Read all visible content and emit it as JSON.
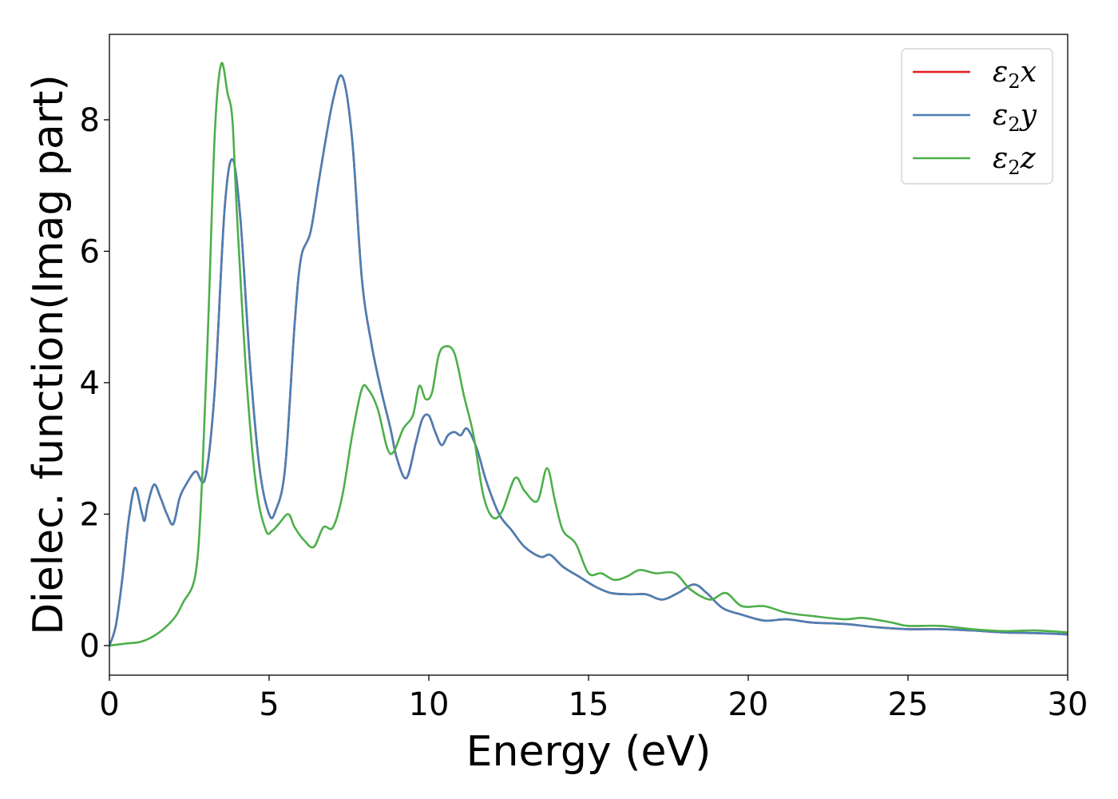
{
  "chart_data": {
    "type": "line",
    "xlabel": "Energy (eV)",
    "ylabel": "Dielec. function(Imag part)",
    "xlim": [
      0,
      30
    ],
    "ylim": [
      -0.45,
      9.3
    ],
    "xticks": [
      0,
      5,
      10,
      15,
      20,
      25,
      30
    ],
    "yticks": [
      0,
      2,
      4,
      6,
      8
    ],
    "grid": false,
    "legend_position": "top-right",
    "series": [
      {
        "name": "ε2x",
        "label_base": "ε",
        "label_sub": "2",
        "label_tail": "x",
        "color": "#e41a1c",
        "x": [
          0,
          0.2,
          0.4,
          0.6,
          0.8,
          1.0,
          1.1,
          1.2,
          1.4,
          1.6,
          1.8,
          2.0,
          2.2,
          2.4,
          2.7,
          3.0,
          3.3,
          3.6,
          3.85,
          4.1,
          4.4,
          4.7,
          5.0,
          5.2,
          5.5,
          5.8,
          6.0,
          6.3,
          6.6,
          7.0,
          7.3,
          7.6,
          7.9,
          8.2,
          8.5,
          8.8,
          9.0,
          9.3,
          9.6,
          9.8,
          10.0,
          10.2,
          10.4,
          10.6,
          10.8,
          11.0,
          11.2,
          11.5,
          11.8,
          12.2,
          12.6,
          13.0,
          13.5,
          13.8,
          14.2,
          14.7,
          15.2,
          15.7,
          16.3,
          16.8,
          17.3,
          17.8,
          18.3,
          18.7,
          19.2,
          19.8,
          20.5,
          21.2,
          22,
          23,
          24,
          25,
          26,
          27,
          28,
          29,
          30
        ],
        "values": [
          0.0,
          0.3,
          1.0,
          1.9,
          2.4,
          2.05,
          1.9,
          2.15,
          2.45,
          2.25,
          2.0,
          1.85,
          2.25,
          2.45,
          2.65,
          2.55,
          3.9,
          6.6,
          7.4,
          6.5,
          4.3,
          2.7,
          2.0,
          2.05,
          2.7,
          4.9,
          5.9,
          6.3,
          7.2,
          8.3,
          8.65,
          7.7,
          5.6,
          4.6,
          3.9,
          3.3,
          2.85,
          2.55,
          3.1,
          3.45,
          3.5,
          3.25,
          3.05,
          3.2,
          3.25,
          3.2,
          3.3,
          3.0,
          2.5,
          2.0,
          1.75,
          1.5,
          1.35,
          1.38,
          1.2,
          1.05,
          0.9,
          0.8,
          0.78,
          0.78,
          0.7,
          0.8,
          0.93,
          0.8,
          0.57,
          0.47,
          0.38,
          0.4,
          0.35,
          0.33,
          0.28,
          0.25,
          0.25,
          0.23,
          0.2,
          0.19,
          0.17
        ]
      },
      {
        "name": "ε2y",
        "label_base": "ε",
        "label_sub": "2",
        "label_tail": "y",
        "color": "#4a7fb5",
        "x": [
          0,
          0.2,
          0.4,
          0.6,
          0.8,
          1.0,
          1.1,
          1.2,
          1.4,
          1.6,
          1.8,
          2.0,
          2.2,
          2.4,
          2.7,
          3.0,
          3.3,
          3.6,
          3.85,
          4.1,
          4.4,
          4.7,
          5.0,
          5.2,
          5.5,
          5.8,
          6.0,
          6.3,
          6.6,
          7.0,
          7.3,
          7.6,
          7.9,
          8.2,
          8.5,
          8.8,
          9.0,
          9.3,
          9.6,
          9.8,
          10.0,
          10.2,
          10.4,
          10.6,
          10.8,
          11.0,
          11.2,
          11.5,
          11.8,
          12.2,
          12.6,
          13.0,
          13.5,
          13.8,
          14.2,
          14.7,
          15.2,
          15.7,
          16.3,
          16.8,
          17.3,
          17.8,
          18.3,
          18.7,
          19.2,
          19.8,
          20.5,
          21.2,
          22,
          23,
          24,
          25,
          26,
          27,
          28,
          29,
          30
        ],
        "values": [
          0.0,
          0.3,
          1.0,
          1.9,
          2.4,
          2.05,
          1.9,
          2.15,
          2.45,
          2.25,
          2.0,
          1.85,
          2.25,
          2.45,
          2.65,
          2.55,
          3.9,
          6.6,
          7.4,
          6.5,
          4.3,
          2.7,
          2.0,
          2.05,
          2.7,
          4.9,
          5.9,
          6.3,
          7.2,
          8.3,
          8.65,
          7.7,
          5.6,
          4.6,
          3.9,
          3.3,
          2.85,
          2.55,
          3.1,
          3.45,
          3.5,
          3.25,
          3.05,
          3.2,
          3.25,
          3.2,
          3.3,
          3.0,
          2.5,
          2.0,
          1.75,
          1.5,
          1.35,
          1.38,
          1.2,
          1.05,
          0.9,
          0.8,
          0.78,
          0.78,
          0.7,
          0.8,
          0.93,
          0.8,
          0.57,
          0.47,
          0.38,
          0.4,
          0.35,
          0.33,
          0.28,
          0.25,
          0.25,
          0.23,
          0.2,
          0.19,
          0.17
        ]
      },
      {
        "name": "ε2z",
        "label_base": "ε",
        "label_sub": "2",
        "label_tail": "z",
        "color": "#4daf4a",
        "x": [
          0,
          0.5,
          1.0,
          1.5,
          2.0,
          2.3,
          2.7,
          2.9,
          3.1,
          3.3,
          3.5,
          3.7,
          3.85,
          4.0,
          4.3,
          4.6,
          4.9,
          5.1,
          5.3,
          5.6,
          5.8,
          6.1,
          6.4,
          6.7,
          7.0,
          7.3,
          7.6,
          7.9,
          8.1,
          8.4,
          8.7,
          8.9,
          9.2,
          9.5,
          9.7,
          9.9,
          10.1,
          10.3,
          10.5,
          10.8,
          11.1,
          11.4,
          11.7,
          12.0,
          12.3,
          12.7,
          13.0,
          13.4,
          13.7,
          13.95,
          14.2,
          14.6,
          15.0,
          15.4,
          15.8,
          16.2,
          16.6,
          17.1,
          17.7,
          18.2,
          18.8,
          19.3,
          19.8,
          20.5,
          21.2,
          22,
          23,
          23.6,
          24.5,
          25,
          26,
          27,
          28,
          29,
          30
        ],
        "values": [
          0.0,
          0.03,
          0.06,
          0.18,
          0.4,
          0.65,
          1.1,
          2.5,
          5.0,
          7.8,
          8.85,
          8.4,
          8.0,
          6.5,
          4.0,
          2.4,
          1.75,
          1.75,
          1.85,
          2.0,
          1.8,
          1.6,
          1.5,
          1.8,
          1.8,
          2.3,
          3.2,
          3.9,
          3.9,
          3.6,
          3.0,
          2.95,
          3.3,
          3.5,
          3.95,
          3.75,
          3.85,
          4.4,
          4.55,
          4.45,
          3.8,
          3.2,
          2.3,
          1.95,
          2.05,
          2.55,
          2.35,
          2.2,
          2.7,
          2.2,
          1.75,
          1.55,
          1.1,
          1.1,
          1.0,
          1.05,
          1.15,
          1.1,
          1.1,
          0.85,
          0.7,
          0.8,
          0.6,
          0.6,
          0.5,
          0.45,
          0.4,
          0.42,
          0.35,
          0.3,
          0.3,
          0.25,
          0.22,
          0.23,
          0.2
        ]
      }
    ]
  }
}
